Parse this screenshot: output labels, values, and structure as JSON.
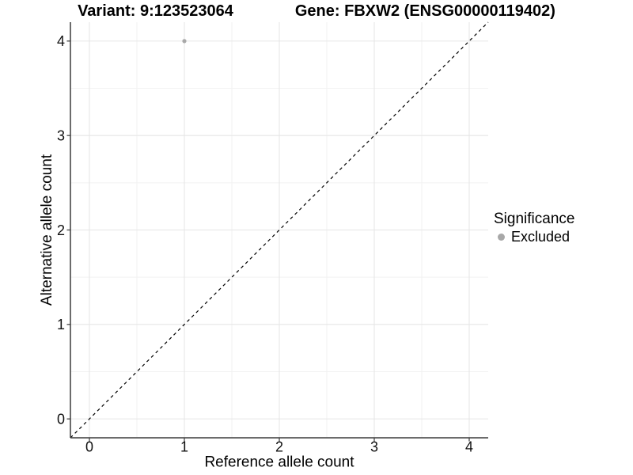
{
  "title": {
    "left": "Variant: 9:123523064",
    "right": "Gene: FBXW2 (ENSG00000119402)"
  },
  "legend": {
    "title": "Significance",
    "items": [
      {
        "label": "Excluded",
        "color": "#a8a8a8"
      }
    ]
  },
  "chart_data": {
    "type": "scatter",
    "title": "Variant: 9:123523064   Gene: FBXW2 (ENSG00000119402)",
    "xlabel": "Reference allele count",
    "ylabel": "Alternative allele count",
    "xlim": [
      -0.2,
      4.2
    ],
    "ylim": [
      -0.2,
      4.2
    ],
    "xticks": [
      0,
      1,
      2,
      3,
      4
    ],
    "yticks": [
      0,
      1,
      2,
      3,
      4
    ],
    "minor_step": 0.5,
    "grid": true,
    "legend_position": "right",
    "legend_title": "Significance",
    "series": [
      {
        "name": "Excluded",
        "color": "#a8a8a8",
        "points": [
          {
            "x": 1,
            "y": 4
          }
        ]
      }
    ],
    "reference_line": {
      "slope": 1,
      "intercept": 0,
      "style": "dashed",
      "color": "#000000"
    }
  },
  "colors": {
    "background": "#ffffff",
    "grid_major": "#e6e6e6",
    "grid_minor": "#f2f2f2",
    "axis_line": "#3c3c3c",
    "tick_mark": "#3c3c3c",
    "point": "#a8a8a8",
    "reference_line": "#000000"
  }
}
